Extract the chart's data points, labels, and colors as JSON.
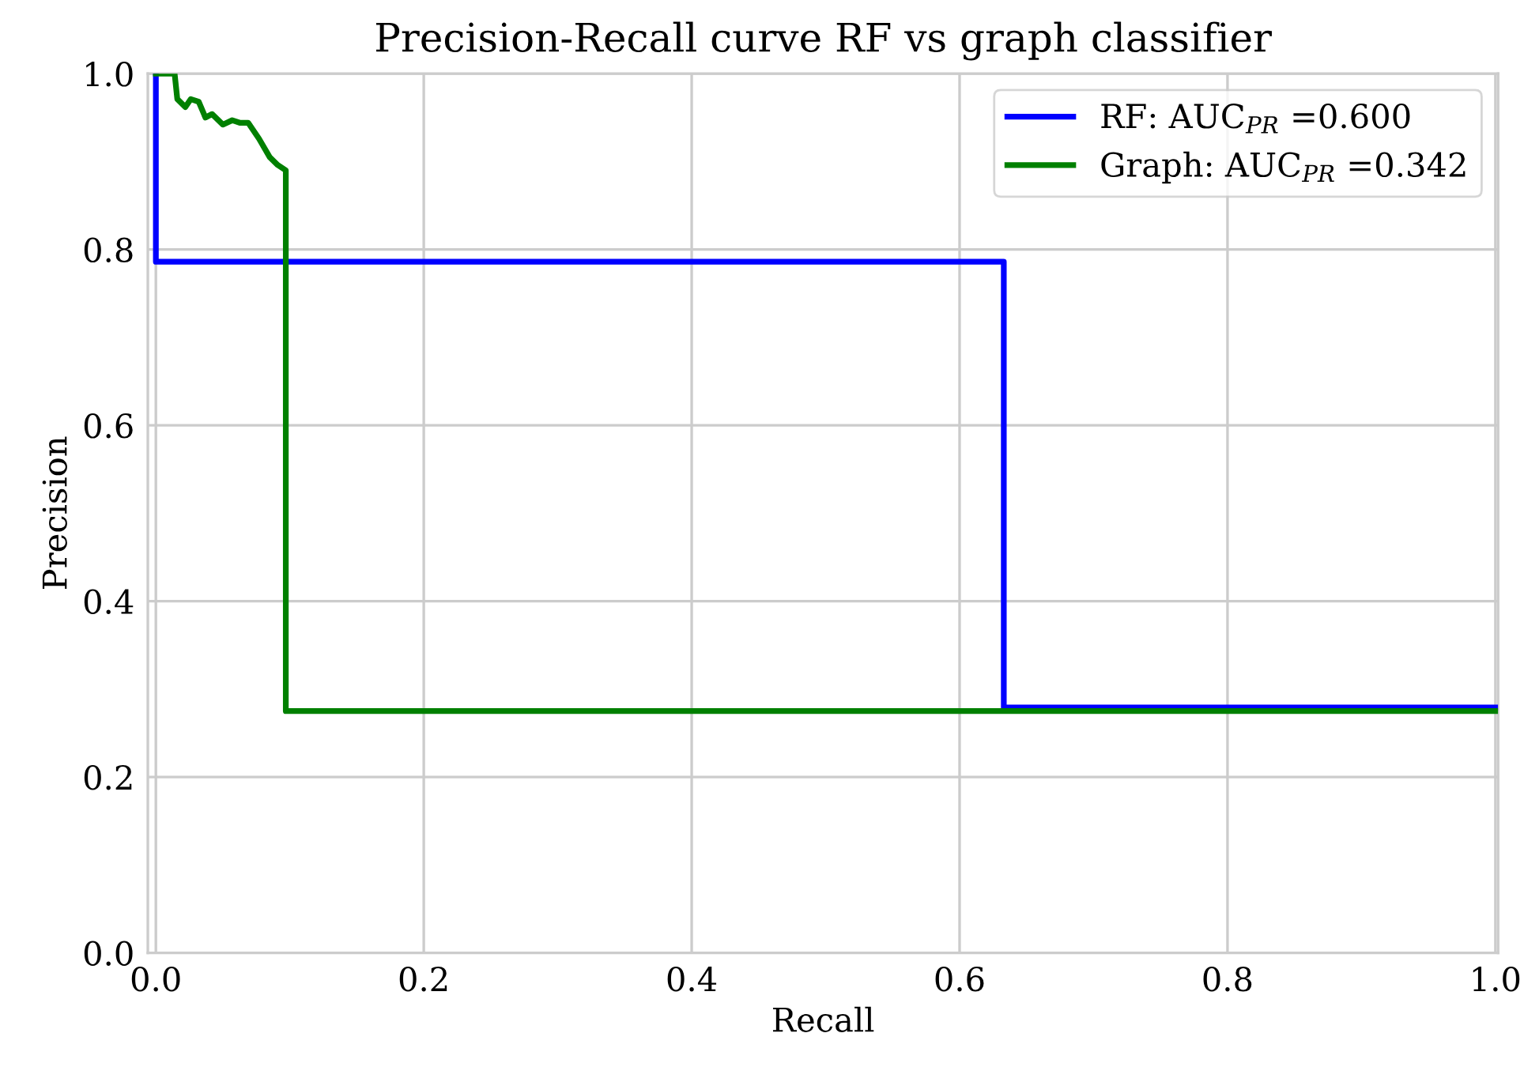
{
  "chart_data": {
    "type": "line",
    "title": "Precision-Recall curve RF vs graph classifier",
    "xlabel": "Recall",
    "ylabel": "Precision",
    "xlim": [
      -0.006,
      1.002
    ],
    "ylim": [
      0,
      1
    ],
    "xticks": [
      {
        "value": 0,
        "label": "0.0"
      },
      0.2,
      0.4,
      0.6,
      0.8,
      {
        "value": 1,
        "label": "1.0"
      }
    ],
    "yticks": [
      {
        "value": 0,
        "label": "0.0"
      },
      0.2,
      0.4,
      0.6,
      0.8,
      {
        "value": 1,
        "label": "1.0"
      }
    ],
    "grid": true,
    "legend": "top right",
    "line_style": "solid",
    "marker": "none",
    "series": [
      {
        "name": "RF: AUC$_{PR}$ =0.600",
        "color": "#0000ff",
        "x": [
          0,
          0,
          0.633,
          0.633,
          1.0
        ],
        "values": [
          1.0,
          0.786,
          0.786,
          0.279,
          0.279
        ]
      },
      {
        "name": "Graph: AUC$_{PR}$ =0.342",
        "color": "#008000",
        "x": [
          0,
          0.014,
          0.016,
          0.022,
          0.026,
          0.032,
          0.037,
          0.042,
          0.05,
          0.057,
          0.063,
          0.069,
          0.077,
          0.085,
          0.091,
          0.097,
          0.097,
          1.0
        ],
        "values": [
          1.0,
          1.0,
          0.971,
          0.962,
          0.971,
          0.968,
          0.95,
          0.954,
          0.942,
          0.947,
          0.944,
          0.944,
          0.926,
          0.905,
          0.896,
          0.89,
          0.275,
          0.275
        ]
      }
    ]
  }
}
